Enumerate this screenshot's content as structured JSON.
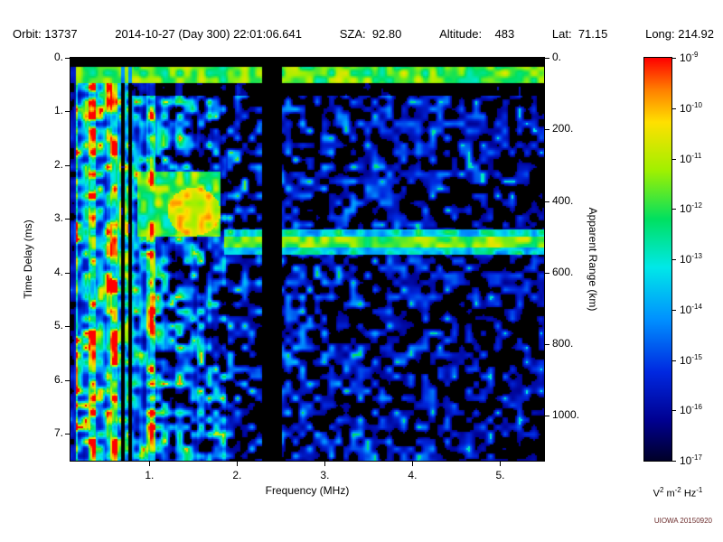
{
  "header": {
    "segments": [
      "Orbit: 13737",
      "2014-10-27 (Day 300) 22:01:06.641",
      "SZA:  92.80",
      "Altitude:    483",
      "Lat:  71.15",
      "Long: 214.92"
    ]
  },
  "credit": "UIOWA 20150920",
  "chart_data": {
    "type": "heatmap",
    "subtype": "radar-sounder-ionogram",
    "title": "",
    "xlabel": "Frequency (MHz)",
    "ylabel": "Time Delay (ms)",
    "y2label": "Apparent Range (km)",
    "x_range_mhz": [
      0.1,
      5.5
    ],
    "y_range_ms": [
      0.0,
      7.5
    ],
    "y2_range_km": [
      0,
      1125
    ],
    "x_ticks": [
      {
        "value": 1,
        "label": "1."
      },
      {
        "value": 2,
        "label": "2."
      },
      {
        "value": 3,
        "label": "3."
      },
      {
        "value": 4,
        "label": "4."
      },
      {
        "value": 5,
        "label": "5."
      }
    ],
    "y_ticks": [
      {
        "value": 0,
        "label": "0."
      },
      {
        "value": 1,
        "label": "1."
      },
      {
        "value": 2,
        "label": "2."
      },
      {
        "value": 3,
        "label": "3."
      },
      {
        "value": 4,
        "label": "4."
      },
      {
        "value": 5,
        "label": "5."
      },
      {
        "value": 6,
        "label": "6."
      },
      {
        "value": 7,
        "label": "7."
      }
    ],
    "y2_ticks": [
      {
        "value": 0,
        "label": "0."
      },
      {
        "value": 200,
        "label": "200."
      },
      {
        "value": 400,
        "label": "400."
      },
      {
        "value": 600,
        "label": "600."
      },
      {
        "value": 800,
        "label": "800."
      },
      {
        "value": 1000,
        "label": "1000."
      }
    ],
    "grid": false,
    "plot_background": "#000000",
    "colorbar": {
      "scale": "log",
      "min": "1e-17",
      "max": "1e-9",
      "tick_base": "10",
      "tick_exponents": [
        "-9",
        "-10",
        "-11",
        "-12",
        "-13",
        "-14",
        "-15",
        "-16",
        "-17"
      ],
      "unit_parts": [
        {
          "base": "V",
          "sup": "2"
        },
        {
          "base": "m",
          "sup": "-2"
        },
        {
          "base": "Hz",
          "sup": "-1"
        }
      ]
    },
    "features": [
      {
        "name": "transmit-pulse-band",
        "type": "horizontal-band",
        "time_ms": [
          0.16,
          0.45
        ],
        "freq_mhz": [
          0.1,
          5.5
        ],
        "description": "bright cyan-green band just below the top edge, full width"
      },
      {
        "name": "low-frequency-plasma-stripes",
        "type": "vertical-stripes",
        "freq_mhz": [
          0.1,
          1.05
        ],
        "time_ms": [
          0.0,
          7.5
        ],
        "description": "dense bright green/yellow vertical streaks at low frequencies, full height"
      },
      {
        "name": "plasma-echo-patch",
        "type": "diffuse-patch",
        "freq_mhz": [
          0.85,
          1.8
        ],
        "time_ms": [
          2.1,
          3.3
        ],
        "hotspot": {
          "freq_mhz": 1.5,
          "time_ms": 2.85
        },
        "description": "diffuse green patch with a yellow hotspot"
      },
      {
        "name": "ionospheric-echo-trace",
        "type": "horizontal-trace",
        "time_ms": 3.42,
        "freq_mhz": [
          1.85,
          5.5
        ],
        "description": "narrow cyan-green horizontal echo line"
      },
      {
        "name": "interference-gap",
        "type": "dark-column",
        "freq_mhz": [
          2.28,
          2.5
        ],
        "description": "black vertical gap cutting through the spectrogram"
      },
      {
        "name": "background-noise",
        "type": "speckle",
        "description": "speckled dark-blue noise blobs fading toward higher frequency"
      }
    ],
    "render": {
      "seed": 1337,
      "cell": 8,
      "col_cell": 4,
      "threshold": 0.1,
      "colormap": [
        [
          0.0,
          "#000028"
        ],
        [
          0.1,
          "#000090"
        ],
        [
          0.22,
          "#0028e0"
        ],
        [
          0.35,
          "#0090ff"
        ],
        [
          0.48,
          "#00e8e8"
        ],
        [
          0.6,
          "#00e060"
        ],
        [
          0.72,
          "#a0f000"
        ],
        [
          0.84,
          "#ffe000"
        ],
        [
          0.92,
          "#ff8000"
        ],
        [
          1.0,
          "#ff0000"
        ]
      ]
    }
  }
}
